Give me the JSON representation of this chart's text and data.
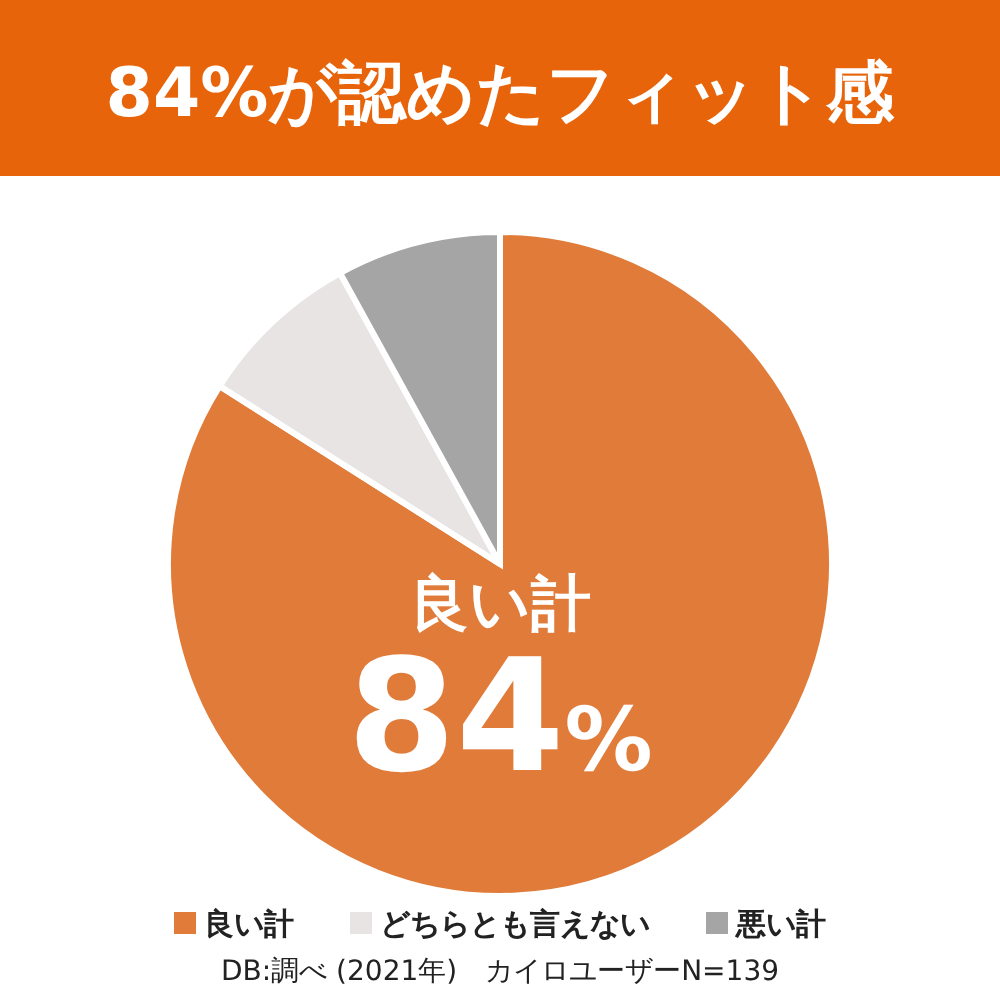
{
  "chart_data": {
    "type": "pie",
    "title": "84%が認めたフィット感",
    "categories": [
      "良い計",
      "どちらとも言えない",
      "悪い計"
    ],
    "values": [
      84,
      8,
      8
    ],
    "colors": [
      "#e07b39",
      "#e8e4e4",
      "#a5a5a5"
    ],
    "value_labels": [
      "84%",
      null,
      null
    ],
    "legend": "bottom",
    "annotations": [
      "DB:調べ (2021年)　カイロユーザーN=139"
    ]
  }
}
